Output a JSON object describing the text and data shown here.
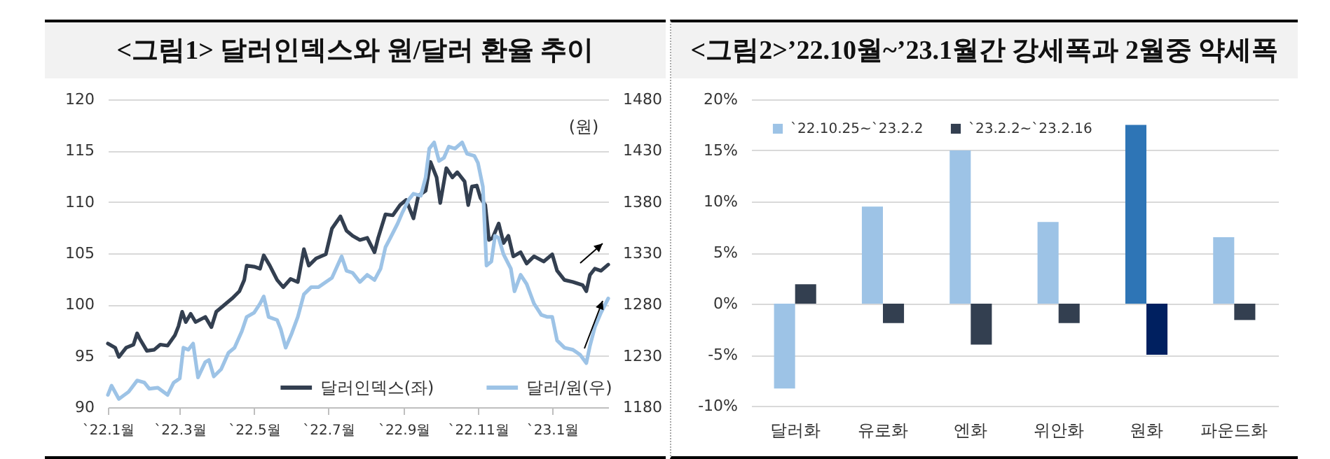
{
  "chart_data": [
    {
      "type": "line",
      "title": "<그림1> 달러인덱스와 원/달러 환율 추이",
      "y2label": "(원)",
      "xlim": [
        "2022-01-01",
        "2023-02-16"
      ],
      "xticks": [
        {
          "value": "2022-01-01",
          "label": "`22.1월"
        },
        {
          "value": "2022-03-01",
          "label": "`22.3월"
        },
        {
          "value": "2022-05-01",
          "label": "`22.5월"
        },
        {
          "value": "2022-07-01",
          "label": "`22.7월"
        },
        {
          "value": "2022-09-01",
          "label": "`22.9월"
        },
        {
          "value": "2022-11-01",
          "label": "`22.11월"
        },
        {
          "value": "2023-01-01",
          "label": "`23.1월"
        }
      ],
      "ylim": [
        90,
        120
      ],
      "yticks": [
        90,
        95,
        100,
        105,
        110,
        115,
        120
      ],
      "y2lim": [
        1180,
        1480
      ],
      "y2ticks": [
        1180,
        1230,
        1280,
        1330,
        1380,
        1430,
        1480
      ],
      "grid": "y",
      "legend": "bottom",
      "line_style": "solid",
      "marker": "none",
      "series": [
        {
          "name": "달러인덱스(좌)",
          "color": "#333f50",
          "x": [
            "2022-01-01",
            "2022-01-07",
            "2022-01-10",
            "2022-01-16",
            "2022-01-22",
            "2022-01-25",
            "2022-01-27",
            "2022-02-02",
            "2022-02-08",
            "2022-02-13",
            "2022-02-19",
            "2022-02-25",
            "2022-02-28",
            "2022-03-03",
            "2022-03-06",
            "2022-03-10",
            "2022-03-14",
            "2022-03-22",
            "2022-03-27",
            "2022-03-31",
            "2022-04-06",
            "2022-04-13",
            "2022-04-19",
            "2022-04-23",
            "2022-04-25",
            "2022-05-01",
            "2022-05-06",
            "2022-05-09",
            "2022-05-14",
            "2022-05-20",
            "2022-05-25",
            "2022-05-31",
            "2022-06-06",
            "2022-06-11",
            "2022-06-15",
            "2022-06-21",
            "2022-06-29",
            "2022-07-04",
            "2022-07-11",
            "2022-07-16",
            "2022-07-21",
            "2022-07-27",
            "2022-08-02",
            "2022-08-08",
            "2022-08-11",
            "2022-08-17",
            "2022-08-23",
            "2022-08-29",
            "2022-09-03",
            "2022-09-09",
            "2022-09-13",
            "2022-09-19",
            "2022-09-23",
            "2022-09-28",
            "2022-10-01",
            "2022-10-06",
            "2022-10-11",
            "2022-10-15",
            "2022-10-21",
            "2022-10-24",
            "2022-10-27",
            "2022-10-31",
            "2022-11-03",
            "2022-11-07",
            "2022-11-10",
            "2022-11-13",
            "2022-11-18",
            "2022-11-22",
            "2022-11-26",
            "2022-11-30",
            "2022-12-06",
            "2022-12-11",
            "2022-12-17",
            "2022-12-25",
            "2023-01-01",
            "2023-01-05",
            "2023-01-11",
            "2023-01-18",
            "2023-01-26",
            "2023-01-29",
            "2023-02-01",
            "2023-02-05",
            "2023-02-10",
            "2023-02-16"
          ],
          "values": [
            96.2,
            95.8,
            94.9,
            95.8,
            96.1,
            97.2,
            96.7,
            95.5,
            95.6,
            96.1,
            96.0,
            97.0,
            97.9,
            99.3,
            98.3,
            99.1,
            98.3,
            98.8,
            97.8,
            99.3,
            99.9,
            100.6,
            101.3,
            102.4,
            103.8,
            103.7,
            103.5,
            104.8,
            103.8,
            102.4,
            101.7,
            102.5,
            102.2,
            105.4,
            103.8,
            104.5,
            104.9,
            107.4,
            108.6,
            107.2,
            106.7,
            106.3,
            106.5,
            105.1,
            106.5,
            108.8,
            108.7,
            109.7,
            110.2,
            108.4,
            110.6,
            111.1,
            113.9,
            112.4,
            109.9,
            113.3,
            112.4,
            112.9,
            112.0,
            109.7,
            111.5,
            111.6,
            110.4,
            109.7,
            106.3,
            106.5,
            107.9,
            106.0,
            106.7,
            104.7,
            105.1,
            104.0,
            104.7,
            104.2,
            104.9,
            103.3,
            102.4,
            102.2,
            101.9,
            101.3,
            102.9,
            103.5,
            103.3,
            103.9
          ]
        },
        {
          "name": "달러/원(우)",
          "color": "#9dc3e6",
          "axis": "y2",
          "x": [
            "2022-01-01",
            "2022-01-04",
            "2022-01-10",
            "2022-01-18",
            "2022-01-25",
            "2022-01-31",
            "2022-02-04",
            "2022-02-11",
            "2022-02-19",
            "2022-02-24",
            "2022-03-01",
            "2022-03-04",
            "2022-03-08",
            "2022-03-12",
            "2022-03-16",
            "2022-03-22",
            "2022-03-25",
            "2022-03-29",
            "2022-04-04",
            "2022-04-10",
            "2022-04-15",
            "2022-04-21",
            "2022-04-25",
            "2022-05-01",
            "2022-05-06",
            "2022-05-09",
            "2022-05-13",
            "2022-05-20",
            "2022-05-23",
            "2022-05-27",
            "2022-06-01",
            "2022-06-06",
            "2022-06-11",
            "2022-06-17",
            "2022-06-23",
            "2022-06-29",
            "2022-07-04",
            "2022-07-12",
            "2022-07-16",
            "2022-07-21",
            "2022-07-27",
            "2022-08-02",
            "2022-08-08",
            "2022-08-13",
            "2022-08-17",
            "2022-08-21",
            "2022-08-27",
            "2022-08-31",
            "2022-09-05",
            "2022-09-09",
            "2022-09-15",
            "2022-09-19",
            "2022-09-22",
            "2022-09-26",
            "2022-09-30",
            "2022-10-04",
            "2022-10-08",
            "2022-10-13",
            "2022-10-19",
            "2022-10-23",
            "2022-10-29",
            "2022-11-01",
            "2022-11-05",
            "2022-11-08",
            "2022-11-12",
            "2022-11-15",
            "2022-11-18",
            "2022-11-22",
            "2022-11-28",
            "2022-12-01",
            "2022-12-06",
            "2022-12-11",
            "2022-12-17",
            "2022-12-23",
            "2022-12-28",
            "2023-01-01",
            "2023-01-05",
            "2023-01-11",
            "2023-01-18",
            "2023-01-24",
            "2023-01-29",
            "2023-02-01",
            "2023-02-05",
            "2023-02-10",
            "2023-02-16"
          ],
          "values": [
            1192,
            1201,
            1188,
            1195,
            1206,
            1204,
            1198,
            1199,
            1192,
            1204,
            1208,
            1238,
            1236,
            1242,
            1209,
            1224,
            1226,
            1210,
            1217,
            1233,
            1238,
            1254,
            1268,
            1272,
            1281,
            1288,
            1268,
            1265,
            1256,
            1238,
            1252,
            1268,
            1290,
            1297,
            1297,
            1302,
            1306,
            1327,
            1313,
            1311,
            1302,
            1309,
            1304,
            1315,
            1336,
            1345,
            1359,
            1370,
            1382,
            1388,
            1386,
            1404,
            1432,
            1438,
            1420,
            1423,
            1434,
            1432,
            1438,
            1427,
            1425,
            1418,
            1395,
            1318,
            1322,
            1347,
            1345,
            1329,
            1315,
            1293,
            1309,
            1300,
            1281,
            1270,
            1268,
            1268,
            1245,
            1238,
            1236,
            1231,
            1223,
            1240,
            1258,
            1272,
            1286
          ]
        }
      ]
    },
    {
      "type": "bar",
      "title": "<그림2>’22.10월~’23.1월간 강세폭과 2월중 약세폭",
      "categories": [
        "달러화",
        "유로화",
        "엔화",
        "위안화",
        "원화",
        "파운드화"
      ],
      "ylim": [
        -10,
        20
      ],
      "yticks": [
        {
          "value": -10,
          "label": "-10%"
        },
        {
          "value": -5,
          "label": "-5%"
        },
        {
          "value": 0,
          "label": "0%"
        },
        {
          "value": 5,
          "label": "5%"
        },
        {
          "value": 10,
          "label": "10%"
        },
        {
          "value": 15,
          "label": "15%"
        },
        {
          "value": 20,
          "label": "20%"
        }
      ],
      "grid": "y",
      "legend": "top left",
      "series": [
        {
          "name": "`22.10.25~`23.2.2",
          "color": "#9dc3e6",
          "colors": [
            "#9dc3e6",
            "#9dc3e6",
            "#9dc3e6",
            "#9dc3e6",
            "#2e75b6",
            "#9dc3e6"
          ],
          "values": [
            -8.3,
            9.5,
            15.0,
            8.0,
            17.5,
            6.5
          ]
        },
        {
          "name": "`23.2.2~`23.2.16",
          "color": "#333f50",
          "colors": [
            "#333f50",
            "#333f50",
            "#333f50",
            "#333f50",
            "#002060",
            "#333f50"
          ],
          "values": [
            1.9,
            -1.9,
            -4.0,
            -1.9,
            -5.0,
            -1.6
          ]
        }
      ]
    }
  ]
}
